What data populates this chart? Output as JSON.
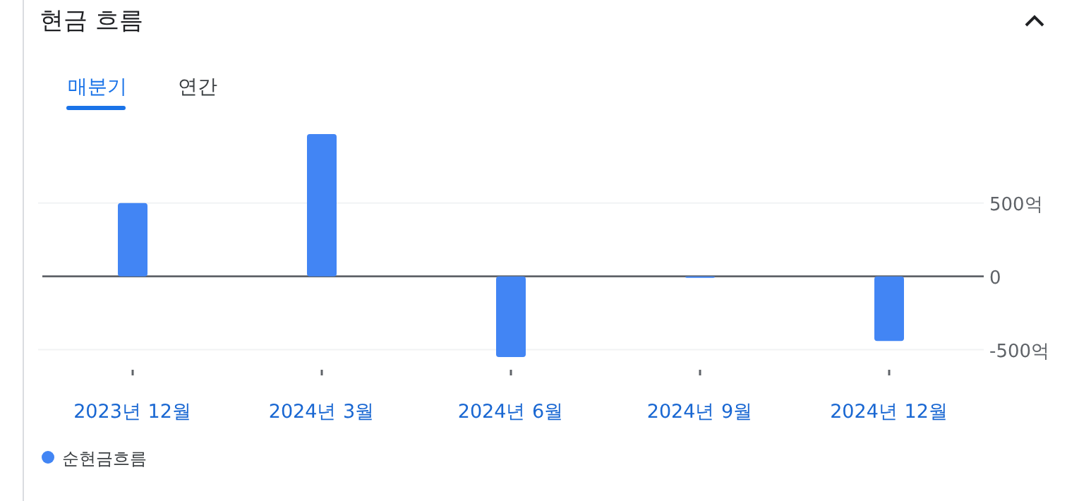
{
  "chart_data": {
    "type": "bar",
    "title": "현금 흐름",
    "annotations": [
      "매분기",
      "연간"
    ],
    "categories": [
      "2023년 12월",
      "2024년 3월",
      "2024년 6월",
      "2024년 9월",
      "2024년 12월"
    ],
    "series": [
      {
        "name": "순현금흐름",
        "color": "#4285f4",
        "values": [
          500,
          970,
          -550,
          -10,
          -440
        ]
      }
    ],
    "ylim": [
      -550,
      970
    ],
    "yticks": [
      {
        "value": -500,
        "label": "-500억"
      },
      0,
      {
        "value": 500,
        "label": "500억"
      }
    ],
    "grid": "y",
    "legend": "bottom left"
  }
}
